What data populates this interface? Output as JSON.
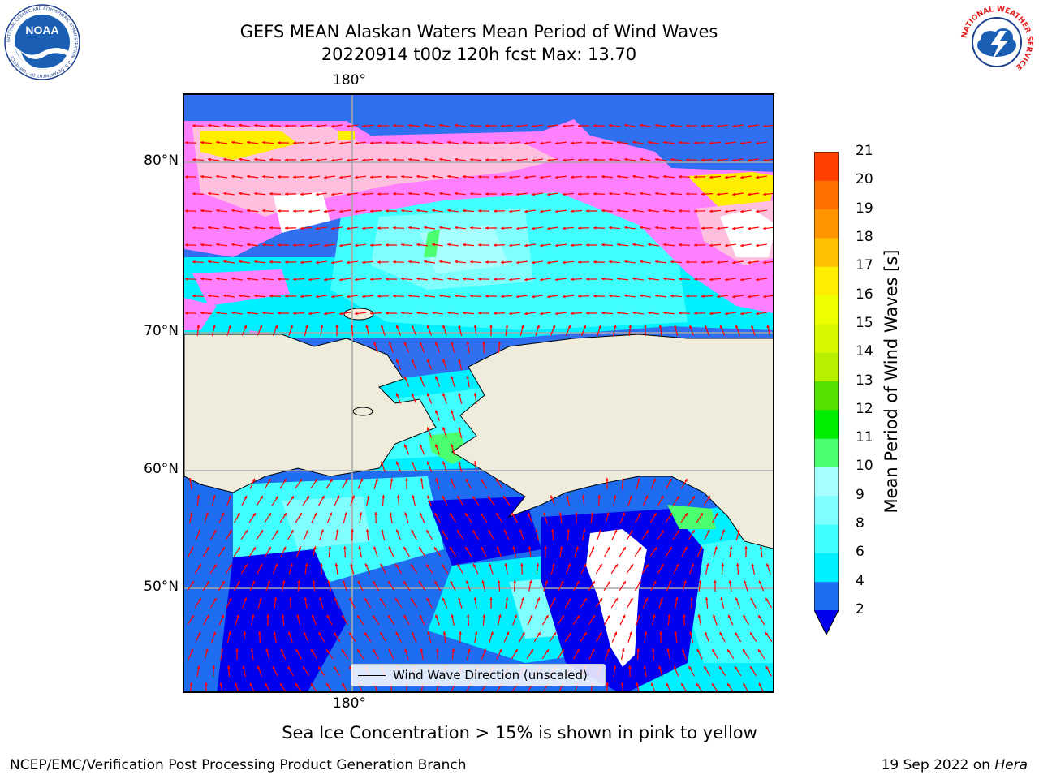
{
  "header": {
    "title_line1": "GEFS MEAN Alaskan Waters Mean Period of Wind Waves",
    "title_line2": "20220914 t00z 120h fcst   Max: 13.70"
  },
  "logos": {
    "left": "NOAA",
    "left_ring": "NATIONAL OCEANIC AND ATMOSPHERIC ADMINISTRATION · U.S. DEPARTMENT OF COMMERCE",
    "right_ring": "NATIONAL WEATHER SERVICE"
  },
  "map": {
    "lon_label_top": "180°",
    "lon_label_bottom": "180°",
    "lat_labels": [
      "80°N",
      "70°N",
      "60°N",
      "50°N"
    ],
    "land_color": "#efecdc",
    "arrow_color": "#ff0000",
    "legend_label": "Wind Wave Direction (unscaled)"
  },
  "colorbar": {
    "title": "Mean Period of Wind Waves [s]",
    "ticks": [
      "2",
      "4",
      "6",
      "8",
      "9",
      "10",
      "11",
      "12",
      "13",
      "14",
      "15",
      "16",
      "17",
      "18",
      "19",
      "20",
      "21"
    ],
    "colors": [
      "#1e6cf0",
      "#00f0ff",
      "#42ffff",
      "#80ffff",
      "#a8ffff",
      "#4cff6e",
      "#00ee00",
      "#55e000",
      "#b8f000",
      "#d8f800",
      "#eeff00",
      "#ffee00",
      "#ffc000",
      "#ff9600",
      "#ff7000",
      "#ff4000",
      "#ff0000"
    ],
    "under_color": "#0000ee"
  },
  "footer": {
    "ice_note": "Sea Ice Concentration > 15% is shown in pink to yellow",
    "left": "NCEP/EMC/Verification Post Processing Product Generation Branch",
    "right_prefix": "19 Sep 2022 on ",
    "right_host": "Hera"
  }
}
